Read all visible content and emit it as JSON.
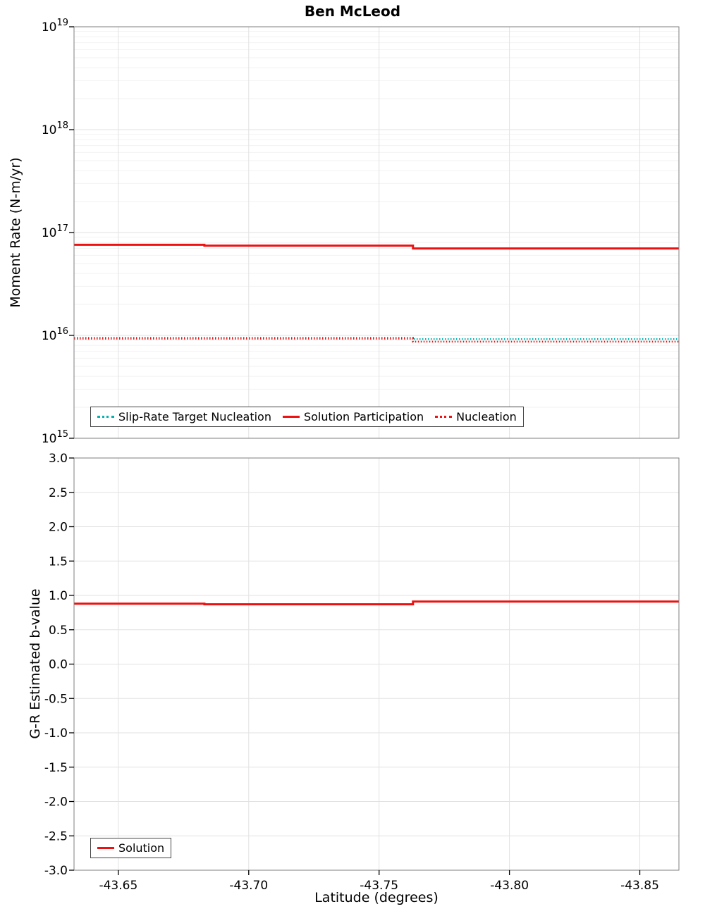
{
  "figure": {
    "title": "Ben McLeod",
    "xlabel": "Latitude (degrees)"
  },
  "chart_data": [
    {
      "type": "line",
      "name": "moment-rate-vs-latitude",
      "ylabel": "Moment Rate (N-m/yr)",
      "yscale": "log",
      "ylim": [
        1000000000000000.0,
        1e+19
      ],
      "y_tick_exponents": [
        15,
        16,
        17,
        18,
        19
      ],
      "xlim": [
        -43.633,
        -43.865
      ],
      "x_inverted": true,
      "xticks": [
        -43.65,
        -43.7,
        -43.75,
        -43.8,
        -43.85
      ],
      "grid": true,
      "legend_position": "bottom-center-inside",
      "series": [
        {
          "name": "Slip-Rate Target Nucleation",
          "color": "#00b2b2",
          "style": "dotted",
          "width": 2.5,
          "x": [
            -43.633,
            -43.763,
            -43.763,
            -43.865
          ],
          "y": [
            9500000000000000.0,
            9500000000000000.0,
            9200000000000000.0,
            9200000000000000.0
          ]
        },
        {
          "name": "Solution Participation",
          "color": "#ee1111",
          "style": "solid",
          "width": 3,
          "x": [
            -43.633,
            -43.683,
            -43.683,
            -43.763,
            -43.763,
            -43.865
          ],
          "y": [
            7.6e+16,
            7.6e+16,
            7.45e+16,
            7.45e+16,
            7e+16,
            7e+16
          ]
        },
        {
          "name": "Nucleation",
          "color": "#ee1111",
          "style": "dotted",
          "width": 2.5,
          "x": [
            -43.633,
            -43.763,
            -43.763,
            -43.865
          ],
          "y": [
            9300000000000000.0,
            9300000000000000.0,
            8700000000000000.0,
            8700000000000000.0
          ]
        }
      ]
    },
    {
      "type": "line",
      "name": "b-value-vs-latitude",
      "ylabel": "G-R Estimated b-value",
      "yscale": "linear",
      "ylim": [
        -3.0,
        3.0
      ],
      "yticks": [
        -3.0,
        -2.5,
        -2.0,
        -1.5,
        -1.0,
        -0.5,
        0.0,
        0.5,
        1.0,
        1.5,
        2.0,
        2.5,
        3.0
      ],
      "xlim": [
        -43.633,
        -43.865
      ],
      "x_inverted": true,
      "xticks": [
        -43.65,
        -43.7,
        -43.75,
        -43.8,
        -43.85
      ],
      "grid": true,
      "legend_position": "bottom-left-inside",
      "series": [
        {
          "name": "Solution",
          "color": "#ee1111",
          "style": "solid",
          "width": 3,
          "x": [
            -43.633,
            -43.683,
            -43.683,
            -43.763,
            -43.763,
            -43.865
          ],
          "y": [
            0.88,
            0.88,
            0.87,
            0.87,
            0.91,
            0.91
          ]
        }
      ]
    }
  ]
}
